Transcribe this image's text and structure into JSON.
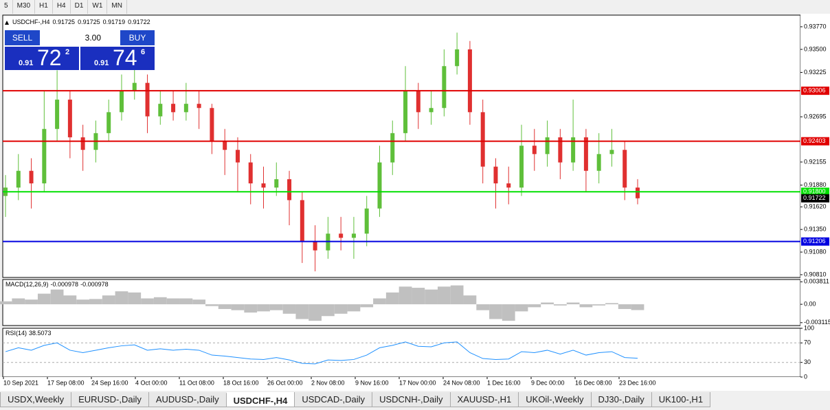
{
  "toolbar": {
    "timeframes": [
      "5",
      "M30",
      "H1",
      "H4",
      "D1",
      "W1",
      "MN"
    ]
  },
  "trade_panel": {
    "sell_label": "SELL",
    "buy_label": "BUY",
    "lot": "3.00",
    "bid": {
      "prefix": "0.91",
      "big": "72",
      "small": "2"
    },
    "ask": {
      "prefix": "0.91",
      "big": "74",
      "small": "6"
    }
  },
  "tabs": {
    "items": [
      "USDX,Weekly",
      "EURUSD-,Daily",
      "AUDUSD-,Daily",
      "USDCHF-,H4",
      "USDCAD-,Daily",
      "USDCNH-,Daily",
      "XAUUSD-,H1",
      "UKOil-,Weekly",
      "DJ30-,Daily",
      "UK100-,H1"
    ],
    "active": "USDCHF-,H4"
  },
  "chart_data": [
    {
      "type": "candlestick",
      "title": "USDCHF-,H4",
      "readout": [
        0.91725,
        0.91725,
        0.91719,
        0.91722
      ],
      "open": [
        0.9175,
        0.9185,
        0.9205,
        0.919,
        0.9255,
        0.929,
        0.9245,
        0.923,
        0.925,
        0.9275,
        0.93,
        0.931,
        0.927,
        0.9285,
        0.9275,
        0.9285,
        0.928,
        0.924,
        0.923,
        0.9215,
        0.919,
        0.9185,
        0.9195,
        0.917,
        0.912,
        0.911,
        0.913,
        0.9125,
        0.913,
        0.916,
        0.9215,
        0.925,
        0.93,
        0.9275,
        0.928,
        0.933,
        0.935,
        0.9275,
        0.921,
        0.919,
        0.9185,
        0.9235,
        0.9225,
        0.9245,
        0.9215,
        0.9245,
        0.9205,
        0.9225,
        0.923,
        0.9185
      ],
      "high": [
        0.92,
        0.9225,
        0.922,
        0.93,
        0.9325,
        0.93,
        0.926,
        0.9265,
        0.929,
        0.932,
        0.933,
        0.932,
        0.93,
        0.93,
        0.931,
        0.93,
        0.9285,
        0.9255,
        0.9245,
        0.9225,
        0.921,
        0.9215,
        0.9205,
        0.918,
        0.914,
        0.915,
        0.915,
        0.915,
        0.9175,
        0.9235,
        0.9265,
        0.933,
        0.931,
        0.93,
        0.935,
        0.937,
        0.936,
        0.929,
        0.922,
        0.921,
        0.926,
        0.9255,
        0.9265,
        0.9255,
        0.929,
        0.9255,
        0.925,
        0.9255,
        0.924,
        0.9195
      ],
      "low": [
        0.915,
        0.917,
        0.916,
        0.918,
        0.924,
        0.922,
        0.9205,
        0.9215,
        0.924,
        0.9265,
        0.929,
        0.925,
        0.926,
        0.9265,
        0.9265,
        0.9255,
        0.9225,
        0.92,
        0.918,
        0.9165,
        0.916,
        0.9175,
        0.914,
        0.9095,
        0.9085,
        0.91,
        0.911,
        0.91,
        0.9115,
        0.915,
        0.92,
        0.924,
        0.9255,
        0.926,
        0.927,
        0.932,
        0.926,
        0.919,
        0.916,
        0.9165,
        0.9175,
        0.9205,
        0.921,
        0.9195,
        0.9205,
        0.918,
        0.919,
        0.921,
        0.917,
        0.9165
      ],
      "close": [
        0.9185,
        0.9205,
        0.919,
        0.9255,
        0.929,
        0.9245,
        0.923,
        0.925,
        0.9275,
        0.93,
        0.931,
        0.927,
        0.9285,
        0.9275,
        0.9285,
        0.928,
        0.924,
        0.923,
        0.9215,
        0.919,
        0.9185,
        0.9195,
        0.917,
        0.912,
        0.911,
        0.913,
        0.9125,
        0.913,
        0.916,
        0.9215,
        0.925,
        0.93,
        0.9275,
        0.928,
        0.933,
        0.935,
        0.9275,
        0.921,
        0.919,
        0.9185,
        0.9235,
        0.9225,
        0.9245,
        0.9215,
        0.9245,
        0.9205,
        0.9225,
        0.923,
        0.9185,
        0.91722
      ],
      "up_color": "#5fbf3a",
      "down_color": "#e03030",
      "ylim": [
        0.90777,
        0.93909
      ],
      "yticks": [
        {
          "value": 0.9377,
          "label": "0.93770"
        },
        {
          "value": 0.935,
          "label": "0.93500"
        },
        0.93225,
        0.92695,
        0.92155,
        {
          "value": 0.9188,
          "label": "0.91880"
        },
        {
          "value": 0.9162,
          "label": "0.91620"
        },
        {
          "value": 0.9135,
          "label": "0.91350"
        },
        {
          "value": 0.9108,
          "label": "0.91080"
        },
        {
          "value": 0.9081,
          "label": "0.90810"
        }
      ],
      "hlines": [
        {
          "value": 0.93006,
          "color": "#e00000"
        },
        {
          "value": 0.92403,
          "color": "#e00000"
        },
        {
          "value": 0.918,
          "label": "0.91800",
          "color": "#00e000"
        },
        {
          "value": 0.91206,
          "color": "#0000e0"
        }
      ],
      "last_price": 0.91722,
      "x_labels": [
        "10 Sep 2021",
        "17 Sep 08:00",
        "24 Sep 16:00",
        "4 Oct 00:00",
        "11 Oct 08:00",
        "18 Oct 16:00",
        "26 Oct 00:00",
        "2 Nov 08:00",
        "9 Nov 16:00",
        "17 Nov 00:00",
        "24 Nov 08:00",
        "1 Dec 16:00",
        "9 Dec 00:00",
        "16 Dec 08:00",
        "23 Dec 16:00"
      ]
    },
    {
      "type": "histogram",
      "title": "MACD(12,26,9)",
      "readout": [
        -0.000978,
        -0.000978
      ],
      "values": [
        0.0005,
        0.001,
        0.0008,
        0.0018,
        0.0025,
        0.0015,
        0.0008,
        0.0009,
        0.0015,
        0.0022,
        0.002,
        0.001,
        0.0012,
        0.001,
        0.001,
        0.0008,
        -0.0003,
        -0.0008,
        -0.001,
        -0.0014,
        -0.0012,
        -0.001,
        -0.0016,
        -0.0025,
        -0.0028,
        -0.002,
        -0.0016,
        -0.0012,
        -0.0005,
        0.001,
        0.002,
        0.003,
        0.0028,
        0.0025,
        0.003,
        0.0032,
        0.0015,
        -0.001,
        -0.0025,
        -0.0028,
        -0.0012,
        -0.0005,
        0.0003,
        -0.0002,
        0.0003,
        -0.0005,
        -0.0002,
        0.0002,
        -0.0008,
        -0.000978
      ],
      "color": "#c0c0c0",
      "ylim": [
        -0.0036,
        0.0042
      ],
      "yticks": [
        0.003811,
        {
          "value": 0,
          "label": "0.00"
        },
        -0.003115
      ]
    },
    {
      "type": "line",
      "title": "RSI(14)",
      "readout": 38.5073,
      "values": [
        52,
        60,
        55,
        65,
        70,
        55,
        50,
        55,
        60,
        64,
        66,
        55,
        58,
        55,
        57,
        55,
        45,
        43,
        40,
        37,
        36,
        40,
        35,
        28,
        27,
        35,
        34,
        36,
        45,
        60,
        65,
        72,
        63,
        62,
        70,
        72,
        50,
        38,
        36,
        37,
        52,
        50,
        55,
        47,
        55,
        45,
        50,
        52,
        40,
        38.5073
      ],
      "color": "#1e90ff",
      "ylim": [
        0,
        100
      ],
      "yticks": [
        100,
        70,
        30,
        0
      ]
    }
  ]
}
